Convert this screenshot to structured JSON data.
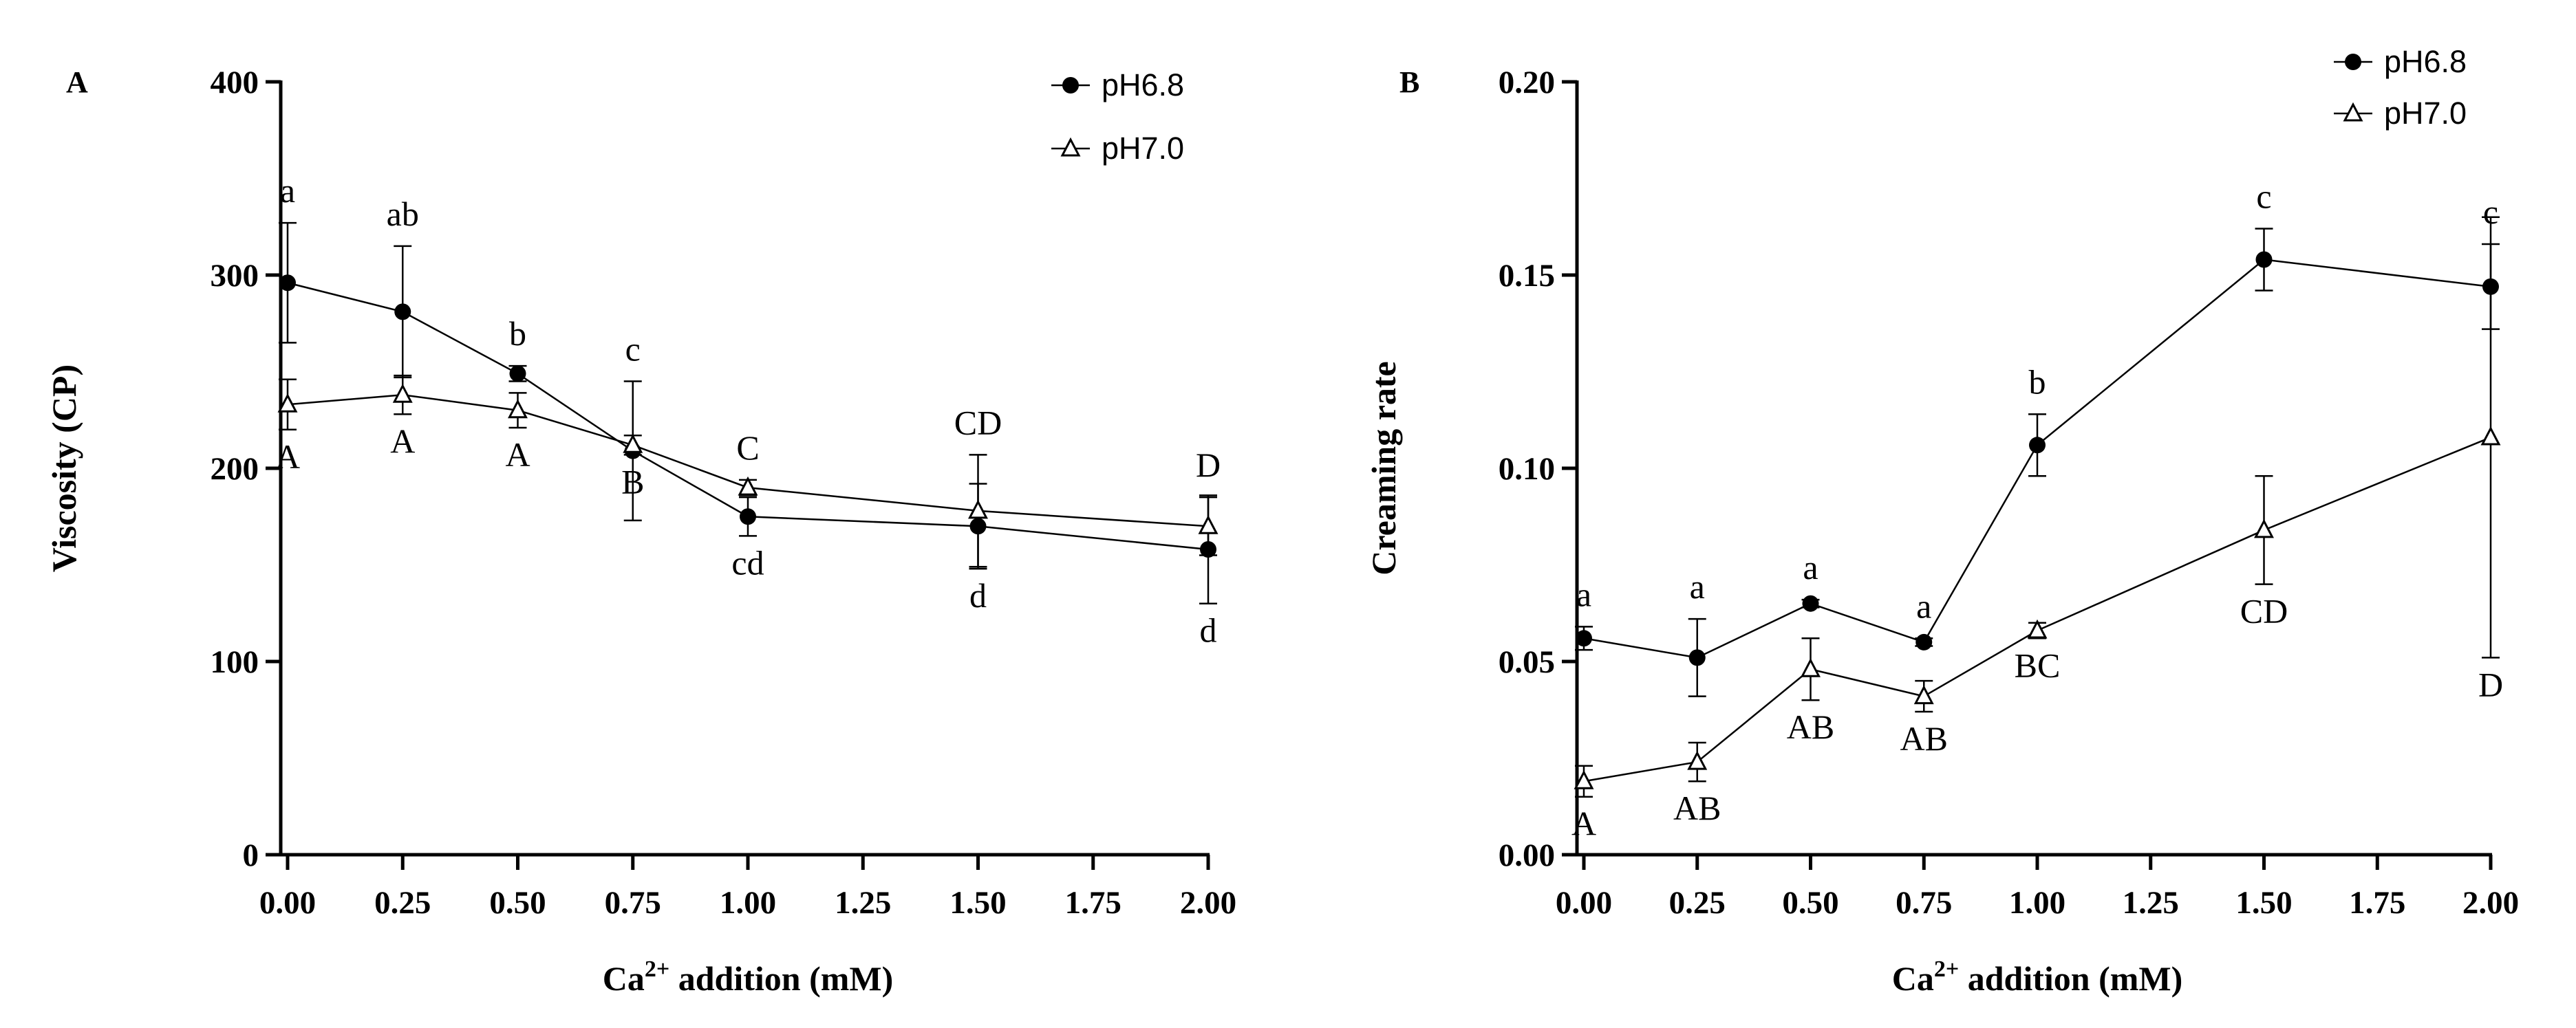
{
  "chart_data": [
    {
      "panel": "A",
      "type": "line",
      "x": [
        0,
        0.25,
        0.5,
        0.75,
        1.0,
        1.5,
        2.0
      ],
      "xlim": [
        0,
        2
      ],
      "ylim": [
        0,
        400
      ],
      "xlabel_main": "Ca",
      "xlabel_sup": "2+",
      "xlabel_rest": " addition (mM)",
      "ylabel": "Viscosity (CP)",
      "xticks": [
        0,
        0.25,
        0.5,
        0.75,
        1.0,
        1.25,
        1.5,
        1.75,
        2.0
      ],
      "xtick_labels": [
        "0.00",
        "0.25",
        "0.50",
        "0.75",
        "1.00",
        "1.25",
        "1.50",
        "1.75",
        "2.00"
      ],
      "yticks": [
        0,
        100,
        200,
        300,
        400
      ],
      "ytick_labels": [
        "0",
        "100",
        "200",
        "300",
        "400"
      ],
      "legend_position": "top-right",
      "series": [
        {
          "name": "pH6.8",
          "marker": "filled-circle",
          "values": [
            296,
            281,
            249,
            209,
            175,
            170,
            158
          ],
          "errors": [
            31,
            34,
            4,
            36,
            10,
            22,
            28
          ],
          "labels": [
            "a",
            "ab",
            "b",
            "c",
            "cd",
            "d",
            "d"
          ],
          "label_side": [
            "above",
            "above",
            "above",
            "above",
            "below",
            "below",
            "below"
          ]
        },
        {
          "name": "pH7.0",
          "marker": "open-triangle",
          "values": [
            233,
            238,
            230,
            212,
            190,
            178,
            170
          ],
          "errors": [
            13,
            10,
            9,
            5,
            4,
            29,
            15
          ],
          "labels": [
            "A",
            "A",
            "A",
            "B",
            "C",
            "CD",
            "D"
          ],
          "label_side": [
            "below",
            "below",
            "below",
            "below",
            "above",
            "above",
            "above"
          ]
        }
      ]
    },
    {
      "panel": "B",
      "type": "line",
      "x": [
        0,
        0.25,
        0.5,
        0.75,
        1.0,
        1.5,
        2.0
      ],
      "xlim": [
        0,
        2
      ],
      "ylim": [
        0,
        0.2
      ],
      "xlabel_main": "Ca",
      "xlabel_sup": "2+",
      "xlabel_rest": " addition (mM)",
      "ylabel": "Creaming rate",
      "xticks": [
        0,
        0.25,
        0.5,
        0.75,
        1.0,
        1.25,
        1.5,
        1.75,
        2.0
      ],
      "xtick_labels": [
        "0.00",
        "0.25",
        "0.50",
        "0.75",
        "1.00",
        "1.25",
        "1.50",
        "1.75",
        "2.00"
      ],
      "yticks": [
        0,
        0.05,
        0.1,
        0.15,
        0.2
      ],
      "ytick_labels": [
        "0.00",
        "0.05",
        "0.10",
        "0.15",
        "0.20"
      ],
      "legend_position": "top-right",
      "series": [
        {
          "name": "pH6.8",
          "marker": "filled-circle",
          "values": [
            0.056,
            0.051,
            0.065,
            0.055,
            0.106,
            0.154,
            0.147
          ],
          "errors": [
            0.003,
            0.01,
            0.001,
            0.001,
            0.008,
            0.008,
            0.011
          ],
          "labels": [
            "a",
            "a",
            "a",
            "a",
            "b",
            "c",
            "c"
          ],
          "label_side": [
            "above",
            "above",
            "above",
            "above",
            "above",
            "above",
            "above"
          ]
        },
        {
          "name": "pH7.0",
          "marker": "open-triangle",
          "values": [
            0.019,
            0.024,
            0.048,
            0.041,
            0.058,
            0.084,
            0.108
          ],
          "errors": [
            0.004,
            0.005,
            0.008,
            0.004,
            0.002,
            0.014,
            0.057
          ],
          "labels": [
            "A",
            "AB",
            "AB",
            "AB",
            "BC",
            "CD",
            "D"
          ],
          "label_side": [
            "below",
            "below",
            "below",
            "below",
            "below",
            "below",
            "below"
          ]
        }
      ]
    }
  ]
}
